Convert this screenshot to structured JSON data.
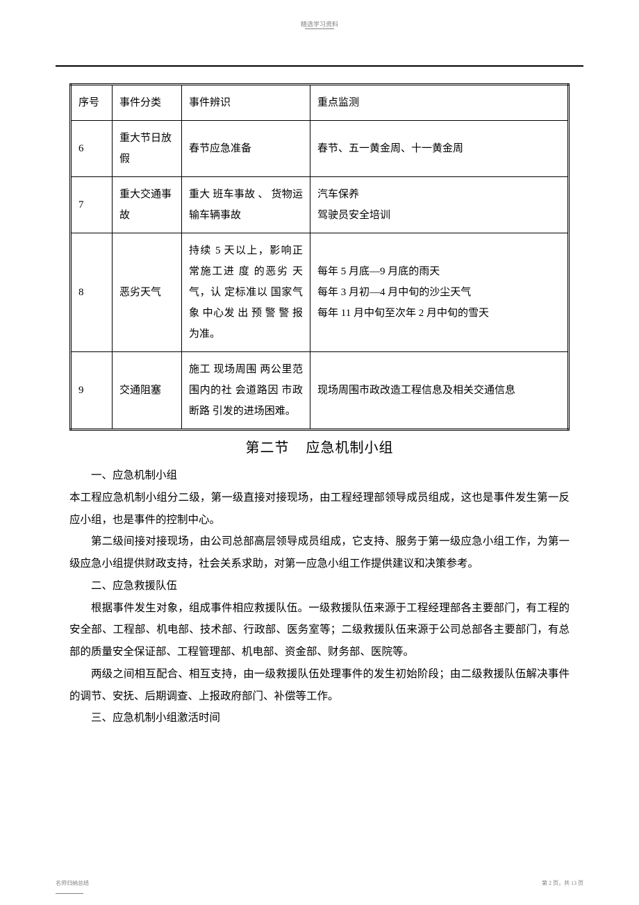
{
  "header": {
    "text": "精选学习资料"
  },
  "table": {
    "columns": [
      "序号",
      "事件分类",
      "事件辨识",
      "重点监测"
    ],
    "rows": [
      {
        "num": "6",
        "cat": "重大节日放假",
        "ident": "春节应急准备",
        "monitor": "春节、五一黄金周、十一黄金周"
      },
      {
        "num": "7",
        "cat": "重大交通事故",
        "ident": "重大 班车事故 、 货物运输车辆事故",
        "monitor": "汽车保养\n驾驶员安全培训"
      },
      {
        "num": "8",
        "cat": "恶劣天气",
        "ident": "持续 5 天以上，影响正 常施工进 度 的恶劣 天气，认 定标准以 国家气象 中心发 出 预 警 警 报 为准。",
        "monitor": "每年 5 月底—9 月底的雨天\n每年 3 月初—4 月中旬的沙尘天气\n每年 11 月中旬至次年  2 月中旬的雪天"
      },
      {
        "num": "9",
        "cat": "交通阻塞",
        "ident": "施工 现场周围 两公里范 围内的社 会道路因 市政断路 引发的进场困难。",
        "monitor": "现场周围市政改造工程信息及相关交通信息"
      }
    ]
  },
  "section": {
    "title_a": "第二节",
    "title_b": "应急机制小组",
    "paragraphs": [
      "一、应急机制小组",
      "本工程应急机制小组分二级，第一级直接对接现场，由工程经理部领导成员组成，这也是事件发生第一反应小组，也是事件的控制中心。",
      "第二级间接对接现场，由公司总部高层领导成员组成，它支持、服务于第一级应急小组工作，为第一级应急小组提供财政支持，社会关系求助，对第一应急小组工作提供建议和决策参考。",
      "二、应急救援队伍",
      "根据事件发生对象，组成事件相应救援队伍。一级救援队伍来源于工程经理部各主要部门，有工程的安全部、工程部、机电部、技术部、行政部、医务室等；二级救援队伍来源于公司总部各主要部门，有总部的质量安全保证部、工程管理部、机电部、资金部、财务部、医院等。",
      "两级之间相互配合、相互支持，由一级救援队伍处理事件的发生初始阶段；由二级救援队伍解决事件的调节、安抚、后期调查、上报政府部门、补偿等工作。",
      "三、应急机制小组激活时间"
    ],
    "no_indent_idx": [
      1
    ]
  },
  "footer": {
    "left": "名师归纳总结",
    "right": "第 2 页，共 13 页"
  }
}
